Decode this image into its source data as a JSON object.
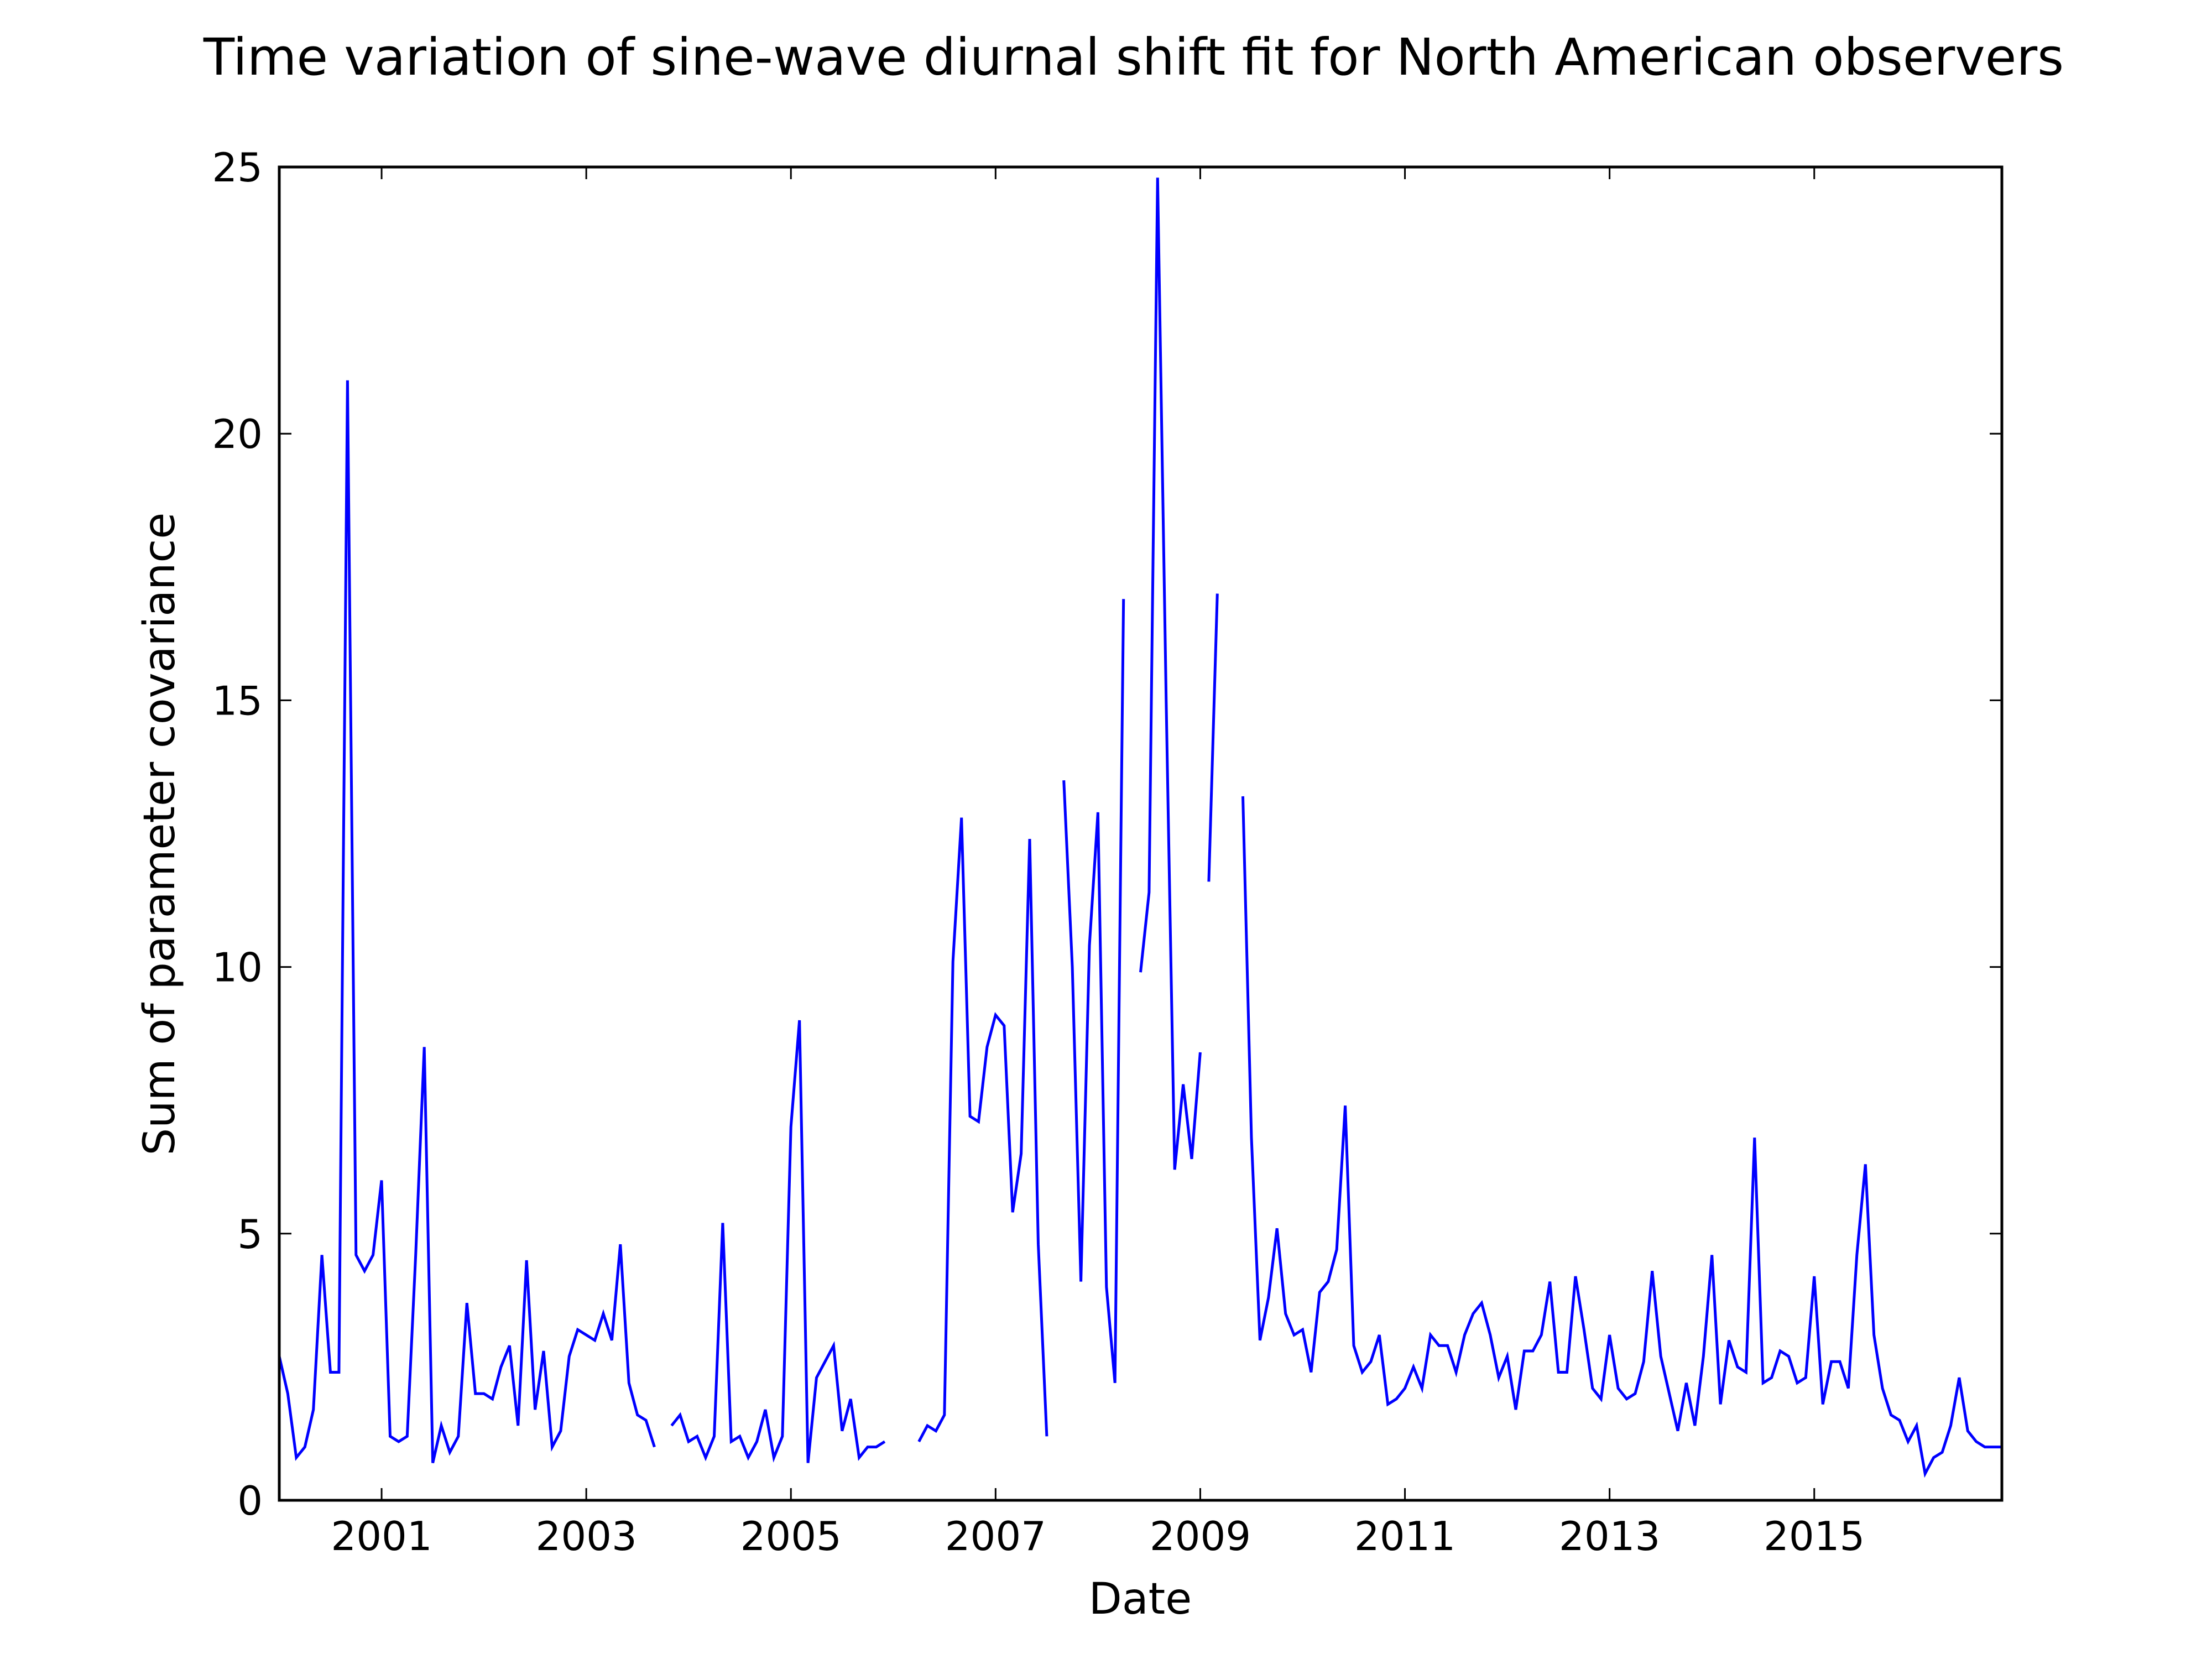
{
  "chart_data": {
    "type": "line",
    "title": "Time variation of sine-wave diurnal shift fit for North American observers",
    "xlabel": "Date",
    "ylabel": "Sum of parameter covariance",
    "xlim": [
      "2000-01",
      "2016-11"
    ],
    "ylim": [
      0,
      25
    ],
    "xticks": [
      "2001",
      "2003",
      "2005",
      "2007",
      "2009",
      "2011",
      "2013",
      "2015"
    ],
    "yticks": [
      "0",
      "5",
      "10",
      "15",
      "20",
      "25"
    ],
    "grid": false,
    "legend": "none",
    "line_color": "#0000ff",
    "series": [
      {
        "segments": [
          {
            "start": "2000-01",
            "values": [
              2.7,
              2.0,
              0.8,
              1.0,
              1.7,
              4.6,
              2.4,
              2.4,
              21.0,
              4.6,
              4.3,
              4.6,
              6.0,
              1.2,
              1.1,
              1.2,
              4.6,
              8.5,
              0.7,
              1.4,
              0.9,
              1.2,
              3.7,
              2.0,
              2.0,
              1.9,
              2.5,
              2.9,
              1.4,
              4.5,
              1.7,
              2.8,
              1.0,
              1.3,
              2.7,
              3.2,
              3.1,
              3.0,
              3.5,
              3.0,
              4.8,
              2.2,
              1.6,
              1.5,
              1.0
            ]
          },
          {
            "start": "2003-11",
            "values": [
              1.4,
              1.6,
              1.1,
              1.2,
              0.8,
              1.2,
              5.2,
              1.1,
              1.2,
              0.8,
              1.1,
              1.7,
              0.8,
              1.2,
              7.0,
              9.0,
              0.7,
              2.3,
              2.6,
              2.9,
              1.3,
              1.9,
              0.8,
              1.0,
              1.0,
              1.1
            ]
          },
          {
            "start": "2006-04",
            "values": [
              1.1,
              1.4,
              1.3,
              1.6,
              10.1,
              12.8,
              7.2,
              7.1,
              8.5,
              9.1,
              8.9,
              5.4,
              6.5,
              12.4,
              4.8,
              1.2
            ]
          },
          {
            "start": "2007-09",
            "values": [
              13.5,
              10.0,
              4.1,
              10.4,
              12.9,
              4.0,
              2.2,
              16.9
            ]
          },
          {
            "start": "2008-06",
            "values": [
              9.9,
              11.4,
              24.8,
              15.0,
              6.2,
              7.8,
              6.4,
              8.4
            ]
          },
          {
            "start": "2009-02",
            "values": [
              11.6,
              17.0
            ]
          },
          {
            "start": "2009-06",
            "values": [
              13.2,
              6.8,
              3.0,
              3.8,
              5.1,
              3.5,
              3.1,
              3.2,
              2.4,
              3.9,
              4.1,
              4.7,
              7.4,
              2.9,
              2.4,
              2.6,
              3.1,
              1.8,
              1.9,
              2.1,
              2.5,
              2.1,
              3.1,
              2.9,
              2.9,
              2.4,
              3.1,
              3.5,
              3.7,
              3.1,
              2.3,
              2.7,
              1.7,
              2.8,
              2.8,
              3.1,
              4.1,
              2.4,
              2.4,
              4.2,
              3.2,
              2.1,
              1.9,
              3.1,
              2.1,
              1.9,
              2.0,
              2.6,
              4.3,
              2.7,
              2.0,
              1.3,
              2.2,
              1.4,
              2.7,
              4.6,
              1.8,
              3.0,
              2.5,
              2.4,
              6.8,
              2.2,
              2.3,
              2.8,
              2.7,
              2.2,
              2.3,
              4.2,
              1.8,
              2.6,
              2.6,
              2.1,
              4.6,
              6.3,
              3.1,
              2.1,
              1.6,
              1.5,
              1.1,
              1.4,
              0.5,
              0.8,
              0.9,
              1.4,
              2.3,
              1.3,
              1.1,
              1.0,
              1.0,
              1.0
            ]
          }
        ]
      }
    ]
  }
}
